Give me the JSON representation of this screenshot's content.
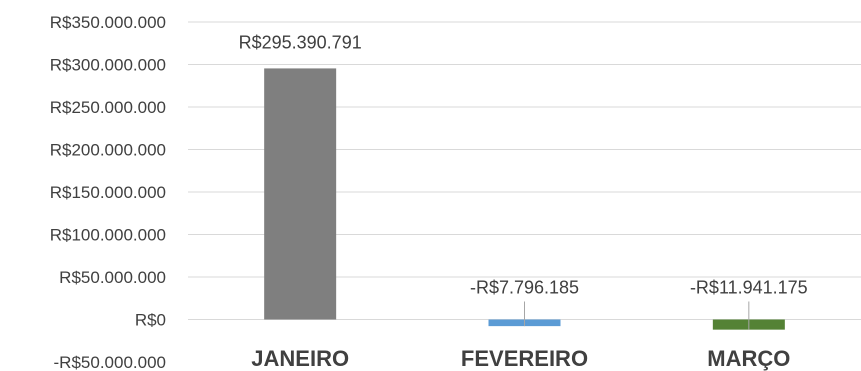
{
  "chart_data": {
    "type": "bar",
    "categories": [
      "JANEIRO",
      "FEVEREIRO",
      "MARÇO"
    ],
    "values": [
      295390791,
      -7796185,
      -11941175
    ],
    "data_labels": [
      "R$295.390.791",
      "-R$7.796.185",
      "-R$11.941.175"
    ],
    "bar_colors": [
      "#7f7f7f",
      "#5b9bd5",
      "#548235"
    ],
    "y_ticks": [
      350000000,
      300000000,
      250000000,
      200000000,
      150000000,
      100000000,
      50000000,
      0,
      -50000000
    ],
    "y_tick_labels": [
      "R$350.000.000",
      "R$300.000.000",
      "R$250.000.000",
      "R$200.000.000",
      "R$150.000.000",
      "R$100.000.000",
      "R$50.000.000",
      "R$0",
      "-R$50.000.000"
    ],
    "ylim": [
      -50000000,
      350000000
    ],
    "grid": true,
    "legend": false
  }
}
